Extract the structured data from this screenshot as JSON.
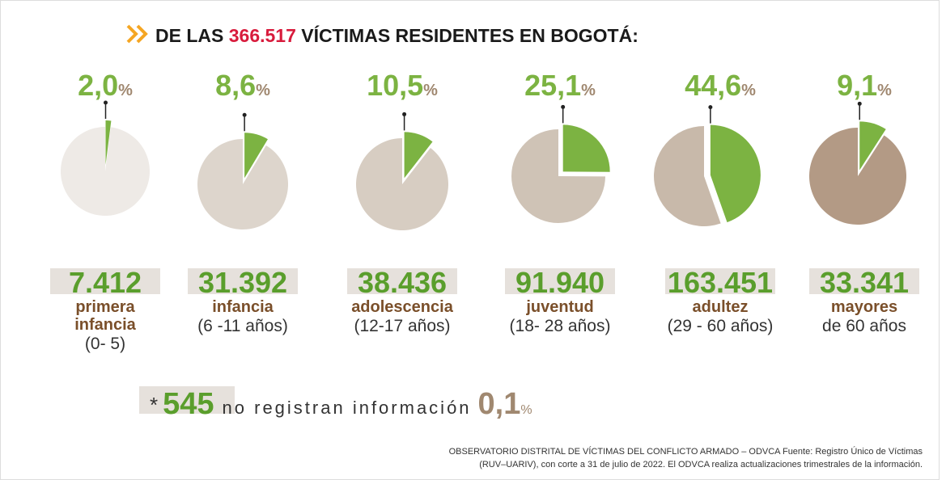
{
  "title": {
    "prefix": "DE LAS",
    "total": "366.517",
    "suffix": "VÍCTIMAS RESIDENTES EN BOGOTÁ:"
  },
  "groups": [
    {
      "percent": {
        "value": 2.0,
        "label": "2,0"
      },
      "percent_sign": "%",
      "count": "7.412",
      "name": [
        "primera",
        "infancia"
      ],
      "range": "(0- 5)"
    },
    {
      "percent": {
        "value": 8.6,
        "label": "8,6"
      },
      "percent_sign": "%",
      "count": "31.392",
      "name": [
        "infancia"
      ],
      "range": "(6 -11 años)"
    },
    {
      "percent": {
        "value": 10.5,
        "label": "10,5"
      },
      "percent_sign": "%",
      "count": "38.436",
      "name": [
        "adolescencia"
      ],
      "range": "(12-17 años)"
    },
    {
      "percent": {
        "value": 25.1,
        "label": "25,1"
      },
      "percent_sign": "%",
      "count": "91.940",
      "name": [
        "juventud"
      ],
      "range": "(18- 28 años)"
    },
    {
      "percent": {
        "value": 44.6,
        "label": "44,6"
      },
      "percent_sign": "%",
      "count": "163.451",
      "name": [
        "adultez"
      ],
      "range": "(29 - 60 años)"
    },
    {
      "percent": {
        "value": 9.1,
        "label": "9,1"
      },
      "percent_sign": "%",
      "count": "33.341",
      "name": [
        "mayores"
      ],
      "range": "de 60 años"
    }
  ],
  "missing": {
    "mark": "*",
    "count": "545",
    "text": "no registran información",
    "percent": "0,1",
    "percent_sign": "%"
  },
  "source": [
    "OBSERVATORIO DISTRITAL DE VÍCTIMAS DEL CONFLICTO ARMADO – ODVCA Fuente: Registro Único de Víctimas",
    "(RUV–UARIV), con corte a 31 de julio de 2022. El ODVCA realiza actualizaciones trimestrales de la información."
  ]
}
